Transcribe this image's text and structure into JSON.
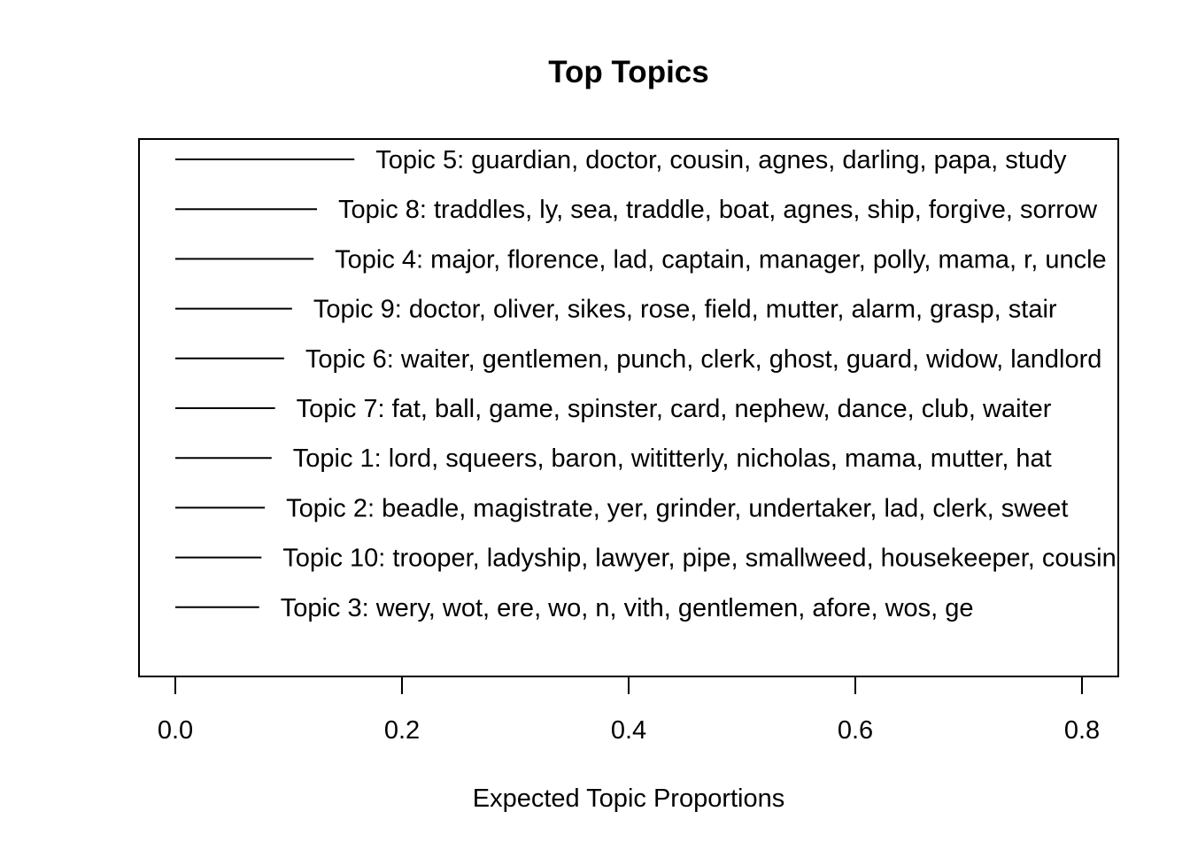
{
  "chart_data": {
    "type": "bar",
    "title": "Top Topics",
    "xlabel": "Expected Topic Proportions",
    "ylabel": "",
    "xlim": [
      0,
      0.8
    ],
    "x_ticks": [
      "0.0",
      "0.2",
      "0.4",
      "0.6",
      "0.8"
    ],
    "x_tick_values": [
      0,
      0.2,
      0.4,
      0.6,
      0.8
    ],
    "grid": false,
    "categories": [
      "Topic 5: guardian, doctor, cousin, agnes, darling, papa, study",
      "Topic 8: traddles, ly, sea, traddle, boat, agnes, ship, forgive, sorrow",
      "Topic 4: major, florence, lad, captain, manager, polly, mama, r, uncle",
      "Topic 9: doctor, oliver, sikes, rose, field, mutter, alarm, grasp, stair",
      "Topic 6: waiter, gentlemen, punch, clerk, ghost, guard, widow, landlord",
      "Topic 7: fat, ball, game, spinster, card, nephew, dance, club, waiter",
      "Topic 1: lord, squeers, baron, wititterly, nicholas, mama, mutter, hat",
      "Topic 2: beadle, magistrate, yer, grinder, undertaker, lad, clerk, sweet",
      "Topic 10: trooper, ladyship, lawyer, pipe, smallweed, housekeeper, cousin",
      "Topic 3: wery, wot, ere, wo, n, vith, gentlemen, afore, wos, ge"
    ],
    "values": [
      0.158,
      0.125,
      0.122,
      0.103,
      0.096,
      0.088,
      0.085,
      0.079,
      0.076,
      0.074
    ]
  }
}
